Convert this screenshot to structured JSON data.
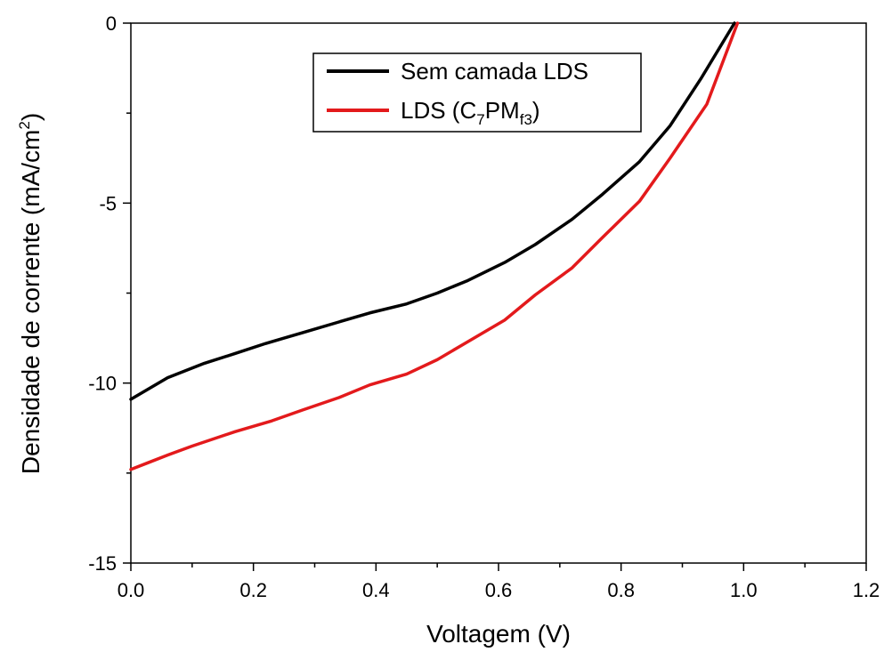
{
  "chart_data": {
    "type": "line",
    "xlabel": "Voltagem (V)",
    "ylabel": {
      "text": "Densidade de corrente (mA/cm",
      "sup": "2",
      "close": ")"
    },
    "xlim": [
      0.0,
      1.2
    ],
    "ylim": [
      -15,
      0
    ],
    "xticks": [
      0.0,
      0.2,
      0.4,
      0.6,
      0.8,
      1.0,
      1.2
    ],
    "xtick_labels": [
      "0.0",
      "0.2",
      "0.4",
      "0.6",
      "0.8",
      "1.0",
      "1.2"
    ],
    "yticks": [
      0,
      -5,
      -10,
      -15
    ],
    "ytick_labels": [
      "0",
      "-5",
      "-10",
      "-15"
    ],
    "grid": false,
    "legend_position": "top-center",
    "series": [
      {
        "name": "Sem camada LDS",
        "color": "#000000",
        "x": [
          0.0,
          0.03,
          0.06,
          0.09,
          0.12,
          0.17,
          0.22,
          0.28,
          0.34,
          0.39,
          0.45,
          0.5,
          0.55,
          0.61,
          0.66,
          0.72,
          0.77,
          0.83,
          0.88,
          0.93,
          0.985
        ],
        "y": [
          -10.45,
          -10.15,
          -9.85,
          -9.65,
          -9.45,
          -9.18,
          -8.9,
          -8.6,
          -8.3,
          -8.05,
          -7.8,
          -7.5,
          -7.15,
          -6.65,
          -6.15,
          -5.45,
          -4.75,
          -3.85,
          -2.85,
          -1.55,
          0.0
        ]
      },
      {
        "name": "LDS (C7PMf3)",
        "name_parts": {
          "base": "LDS (C",
          "sub1": "7",
          "mid": "PM",
          "sub2": "f3",
          "close": ")"
        },
        "color": "#e31a1c",
        "x": [
          0.0,
          0.03,
          0.06,
          0.1,
          0.17,
          0.23,
          0.28,
          0.34,
          0.39,
          0.45,
          0.5,
          0.55,
          0.61,
          0.66,
          0.72,
          0.77,
          0.83,
          0.88,
          0.94,
          0.99
        ],
        "y": [
          -12.4,
          -12.2,
          -12.0,
          -11.75,
          -11.35,
          -11.05,
          -10.75,
          -10.4,
          -10.05,
          -9.75,
          -9.35,
          -8.85,
          -8.25,
          -7.55,
          -6.8,
          -5.95,
          -4.95,
          -3.75,
          -2.25,
          0.0
        ]
      }
    ]
  }
}
